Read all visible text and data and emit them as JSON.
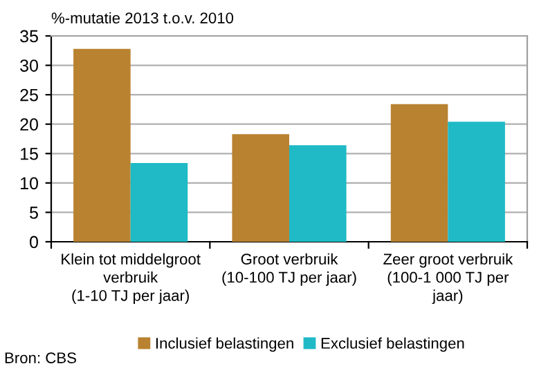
{
  "chart_data": {
    "type": "bar",
    "ylabel": "%-mutatie 2013 t.o.v. 2010",
    "categories": [
      "Klein tot middelgroot\nverbruik\n(1-10 TJ per jaar)",
      "Groot verbruik\n(10-100 TJ per jaar)",
      "Zeer groot verbruik\n(100-1 000 TJ per\njaar)"
    ],
    "series": [
      {
        "name": "Inclusief belastingen",
        "color": "#b98230",
        "values": [
          32.8,
          18.3,
          23.4
        ]
      },
      {
        "name": "Exclusief belastingen",
        "color": "#1fbac6",
        "values": [
          13.4,
          16.4,
          20.4
        ]
      }
    ],
    "ylim": [
      0,
      35
    ],
    "yticks": [
      0,
      5,
      10,
      15,
      20,
      25,
      30,
      35
    ],
    "grid": "y",
    "legend": "bottom",
    "annotations": [
      "Bron: CBS"
    ]
  }
}
